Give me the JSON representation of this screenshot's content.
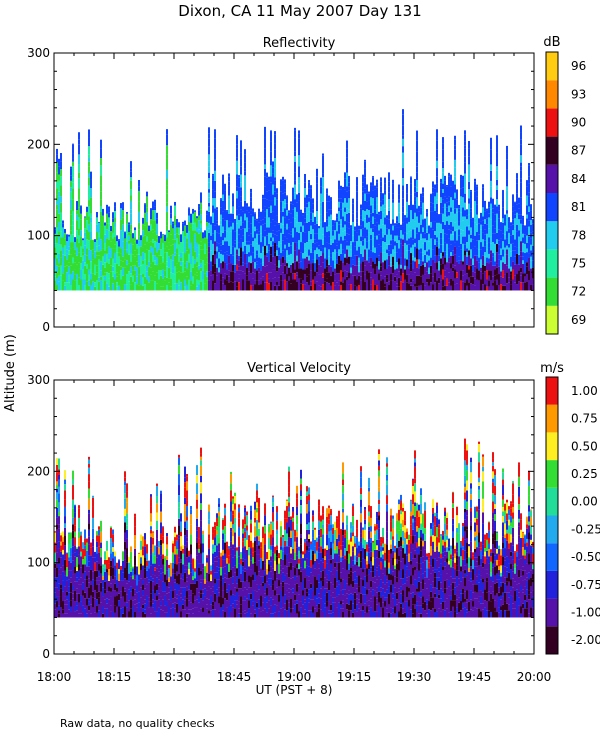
{
  "title": "Dixon, CA 11 May 2007  Day 131",
  "footnote": "Raw data, no quality checks",
  "y_axis_label": "Altitude (m)",
  "x_axis_label": "UT  (PST + 8)",
  "chart_data": [
    {
      "type": "heatmap",
      "title": "Reflectivity",
      "colorbar_unit": "dB",
      "x_ticks": [
        "18:00",
        "18:15",
        "18:30",
        "18:45",
        "19:00",
        "19:15",
        "19:30",
        "19:45",
        "20:00"
      ],
      "x_range_minutes": [
        0,
        120
      ],
      "y_ticks": [
        0,
        100,
        200,
        300
      ],
      "ylim": [
        0,
        300
      ],
      "data_floor_m": 40,
      "colorbar_levels": [
        69,
        72,
        75,
        78,
        81,
        84,
        87,
        90,
        93,
        96
      ],
      "colorbar_colors": [
        "#ccff33",
        "#33dd33",
        "#22eea0",
        "#22ccee",
        "#1144ff",
        "#5511aa",
        "#330022",
        "#ee1111",
        "#ff8800",
        "#ffcc11"
      ]
    },
    {
      "type": "heatmap",
      "title": "Vertical Velocity",
      "colorbar_unit": "m/s",
      "x_ticks": [
        "18:00",
        "18:15",
        "18:30",
        "18:45",
        "19:00",
        "19:15",
        "19:30",
        "19:45",
        "20:00"
      ],
      "x_range_minutes": [
        0,
        120
      ],
      "y_ticks": [
        0,
        100,
        200,
        300
      ],
      "ylim": [
        0,
        300
      ],
      "data_floor_m": 40,
      "colorbar_levels": [
        "-2.00",
        "-1.00",
        "-0.75",
        "-0.50",
        "-0.25",
        "0.00",
        "0.25",
        "0.50",
        "0.75",
        "1.00"
      ],
      "colorbar_colors": [
        "#330022",
        "#5511aa",
        "#2222dd",
        "#1166ff",
        "#22aaee",
        "#22dd99",
        "#33dd33",
        "#ffee22",
        "#ff9900",
        "#ee1111"
      ]
    }
  ]
}
